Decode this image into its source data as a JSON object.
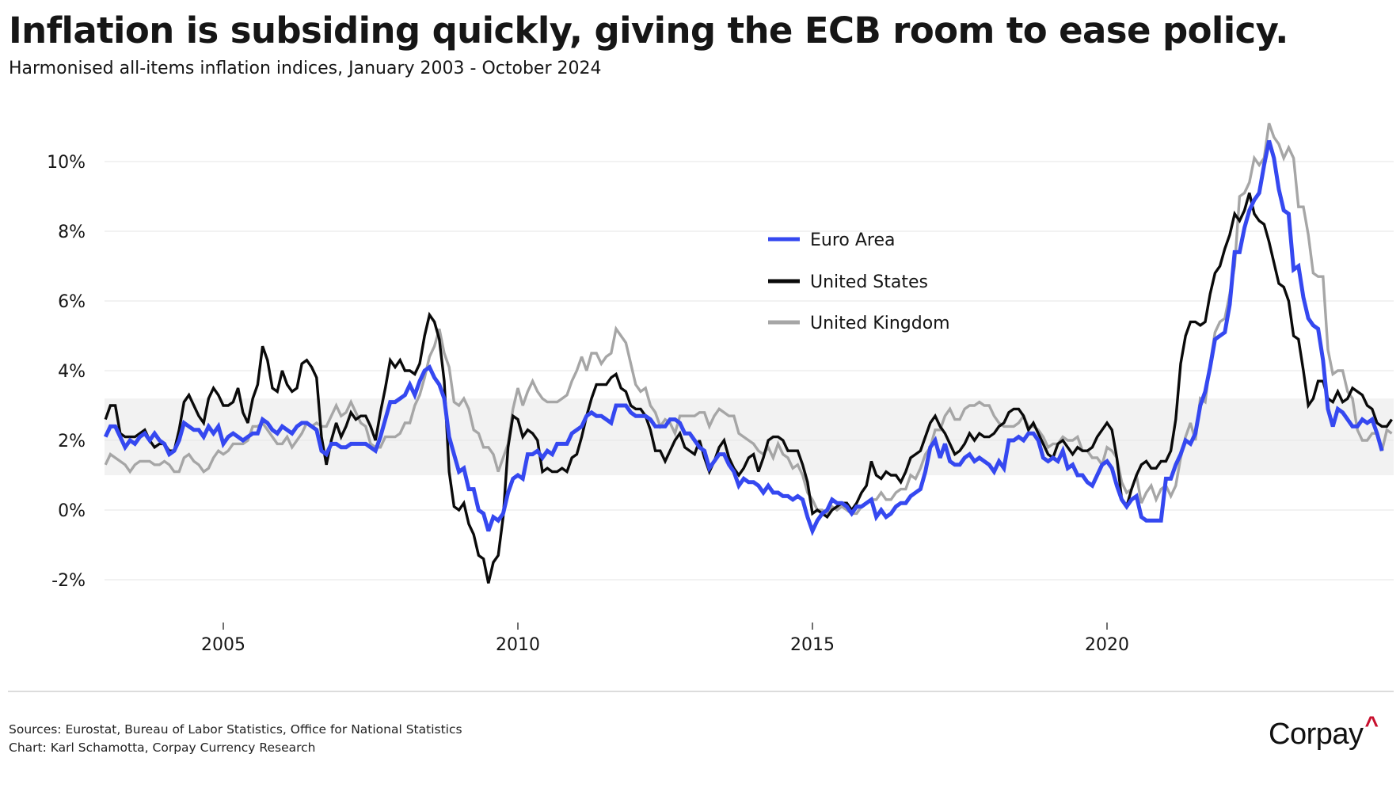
{
  "header": {
    "title": "Inflation is subsiding quickly, giving the ECB room to ease policy.",
    "subtitle_main": "Harmonised all-items inflation indices,",
    "subtitle_range": " January 2003 - October 2024"
  },
  "footer": {
    "sources": "Sources: Eurostat, Bureau of Labor Statistics, Office for National Statistics",
    "credit": "Chart: Karl Schamotta, Corpay Currency Research",
    "logo_text": "Corpay",
    "logo_mark": "^",
    "logo_mark_color": "#c8102e"
  },
  "chart_data": {
    "type": "line",
    "title": "Inflation is subsiding quickly, giving the ECB room to ease policy.",
    "subtitle": "Harmonised all-items inflation indices, January 2003 - October 2024",
    "xlabel": "",
    "ylabel": "",
    "x_start": "2003-01",
    "x_end": "2024-10",
    "x_frequency": "monthly",
    "xlim": [
      2003.0,
      2024.79
    ],
    "ylim": [
      -3.2,
      11.2
    ],
    "x_ticks": [
      2005,
      2010,
      2015,
      2020
    ],
    "x_tick_labels": [
      "2005",
      "2010",
      "2015",
      "2020"
    ],
    "y_ticks": [
      -2,
      0,
      2,
      4,
      6,
      8,
      10
    ],
    "y_tick_labels": [
      "-2%",
      "0%",
      "2%",
      "4%",
      "6%",
      "8%",
      "10%"
    ],
    "grid": "horizontal",
    "shaded_band": {
      "from": 1.0,
      "to": 3.2,
      "color": "#f2f2f2"
    },
    "legend_position": "top-center",
    "series": [
      {
        "name": "Euro Area",
        "color": "#3548f0",
        "values": [
          2.1,
          2.4,
          2.4,
          2.1,
          1.8,
          2.0,
          1.9,
          2.1,
          2.2,
          2.0,
          2.2,
          2.0,
          1.9,
          1.6,
          1.7,
          2.0,
          2.5,
          2.4,
          2.3,
          2.3,
          2.1,
          2.4,
          2.2,
          2.4,
          1.9,
          2.1,
          2.2,
          2.1,
          2.0,
          2.1,
          2.2,
          2.2,
          2.6,
          2.5,
          2.3,
          2.2,
          2.4,
          2.3,
          2.2,
          2.4,
          2.5,
          2.5,
          2.4,
          2.3,
          1.7,
          1.6,
          1.9,
          1.9,
          1.8,
          1.8,
          1.9,
          1.9,
          1.9,
          1.9,
          1.8,
          1.7,
          2.1,
          2.6,
          3.1,
          3.1,
          3.2,
          3.3,
          3.6,
          3.3,
          3.7,
          4.0,
          4.1,
          3.8,
          3.6,
          3.2,
          2.1,
          1.6,
          1.1,
          1.2,
          0.6,
          0.6,
          0.0,
          -0.1,
          -0.6,
          -0.2,
          -0.3,
          -0.1,
          0.5,
          0.9,
          1.0,
          0.9,
          1.6,
          1.6,
          1.7,
          1.5,
          1.7,
          1.6,
          1.9,
          1.9,
          1.9,
          2.2,
          2.3,
          2.4,
          2.7,
          2.8,
          2.7,
          2.7,
          2.6,
          2.5,
          3.0,
          3.0,
          3.0,
          2.8,
          2.7,
          2.7,
          2.7,
          2.6,
          2.4,
          2.4,
          2.4,
          2.6,
          2.6,
          2.5,
          2.2,
          2.2,
          2.0,
          1.8,
          1.7,
          1.2,
          1.4,
          1.6,
          1.6,
          1.3,
          1.1,
          0.7,
          0.9,
          0.8,
          0.8,
          0.7,
          0.5,
          0.7,
          0.5,
          0.5,
          0.4,
          0.4,
          0.3,
          0.4,
          0.3,
          -0.2,
          -0.6,
          -0.3,
          -0.1,
          0.0,
          0.3,
          0.2,
          0.2,
          0.1,
          -0.1,
          0.1,
          0.1,
          0.2,
          0.3,
          -0.2,
          0.0,
          -0.2,
          -0.1,
          0.1,
          0.2,
          0.2,
          0.4,
          0.5,
          0.6,
          1.1,
          1.8,
          2.0,
          1.5,
          1.9,
          1.4,
          1.3,
          1.3,
          1.5,
          1.6,
          1.4,
          1.5,
          1.4,
          1.3,
          1.1,
          1.4,
          1.2,
          2.0,
          2.0,
          2.1,
          2.0,
          2.2,
          2.2,
          2.0,
          1.5,
          1.4,
          1.5,
          1.4,
          1.7,
          1.2,
          1.3,
          1.0,
          1.0,
          0.8,
          0.7,
          1.0,
          1.3,
          1.4,
          1.2,
          0.7,
          0.3,
          0.1,
          0.3,
          0.4,
          -0.2,
          -0.3,
          -0.3,
          -0.3,
          -0.3,
          0.9,
          0.9,
          1.3,
          1.6,
          2.0,
          1.9,
          2.2,
          3.0,
          3.4,
          4.1,
          4.9,
          5.0,
          5.1,
          5.9,
          7.4,
          7.4,
          8.1,
          8.6,
          8.9,
          9.1,
          9.9,
          10.6,
          10.1,
          9.2,
          8.6,
          8.5,
          6.9,
          7.0,
          6.1,
          5.5,
          5.3,
          5.2,
          4.3,
          2.9,
          2.4,
          2.9,
          2.8,
          2.6,
          2.4,
          2.4,
          2.6,
          2.5,
          2.6,
          2.2,
          1.7
        ]
      },
      {
        "name": "United States",
        "color": "#0a0a0a",
        "values": [
          2.6,
          3.0,
          3.0,
          2.2,
          2.1,
          2.1,
          2.1,
          2.2,
          2.3,
          2.0,
          1.8,
          1.9,
          1.9,
          1.7,
          1.7,
          2.3,
          3.1,
          3.3,
          3.0,
          2.7,
          2.5,
          3.2,
          3.5,
          3.3,
          3.0,
          3.0,
          3.1,
          3.5,
          2.8,
          2.5,
          3.2,
          3.6,
          4.7,
          4.3,
          3.5,
          3.4,
          4.0,
          3.6,
          3.4,
          3.5,
          4.2,
          4.3,
          4.1,
          3.8,
          2.1,
          1.3,
          2.0,
          2.5,
          2.1,
          2.4,
          2.8,
          2.6,
          2.7,
          2.7,
          2.4,
          2.0,
          2.8,
          3.5,
          4.3,
          4.1,
          4.3,
          4.0,
          4.0,
          3.9,
          4.2,
          5.0,
          5.6,
          5.4,
          4.9,
          3.7,
          1.1,
          0.1,
          0.0,
          0.2,
          -0.4,
          -0.7,
          -1.3,
          -1.4,
          -2.1,
          -1.5,
          -1.3,
          -0.2,
          1.8,
          2.7,
          2.6,
          2.1,
          2.3,
          2.2,
          2.0,
          1.1,
          1.2,
          1.1,
          1.1,
          1.2,
          1.1,
          1.5,
          1.6,
          2.1,
          2.7,
          3.2,
          3.6,
          3.6,
          3.6,
          3.8,
          3.9,
          3.5,
          3.4,
          3.0,
          2.9,
          2.9,
          2.7,
          2.3,
          1.7,
          1.7,
          1.4,
          1.7,
          2.0,
          2.2,
          1.8,
          1.7,
          1.6,
          2.0,
          1.5,
          1.1,
          1.4,
          1.8,
          2.0,
          1.5,
          1.2,
          1.0,
          1.2,
          1.5,
          1.6,
          1.1,
          1.5,
          2.0,
          2.1,
          2.1,
          2.0,
          1.7,
          1.7,
          1.7,
          1.3,
          0.8,
          -0.1,
          0.0,
          -0.1,
          -0.2,
          0.0,
          0.1,
          0.2,
          0.2,
          0.0,
          0.2,
          0.5,
          0.7,
          1.4,
          1.0,
          0.9,
          1.1,
          1.0,
          1.0,
          0.8,
          1.1,
          1.5,
          1.6,
          1.7,
          2.1,
          2.5,
          2.7,
          2.4,
          2.2,
          1.9,
          1.6,
          1.7,
          1.9,
          2.2,
          2.0,
          2.2,
          2.1,
          2.1,
          2.2,
          2.4,
          2.5,
          2.8,
          2.9,
          2.9,
          2.7,
          2.3,
          2.5,
          2.2,
          1.9,
          1.6,
          1.5,
          1.9,
          2.0,
          1.8,
          1.6,
          1.8,
          1.7,
          1.7,
          1.8,
          2.1,
          2.3,
          2.5,
          2.3,
          1.5,
          0.3,
          0.1,
          0.6,
          1.0,
          1.3,
          1.4,
          1.2,
          1.2,
          1.4,
          1.4,
          1.7,
          2.6,
          4.2,
          5.0,
          5.4,
          5.4,
          5.3,
          5.4,
          6.2,
          6.8,
          7.0,
          7.5,
          7.9,
          8.5,
          8.3,
          8.6,
          9.1,
          8.5,
          8.3,
          8.2,
          7.7,
          7.1,
          6.5,
          6.4,
          6.0,
          5.0,
          4.9,
          4.0,
          3.0,
          3.2,
          3.7,
          3.7,
          3.2,
          3.1,
          3.4,
          3.1,
          3.2,
          3.5,
          3.4,
          3.3,
          3.0,
          2.9,
          2.5,
          2.4,
          2.4,
          2.6
        ]
      },
      {
        "name": "United Kingdom",
        "color": "#a6a6a6",
        "values": [
          1.3,
          1.6,
          1.5,
          1.4,
          1.3,
          1.1,
          1.3,
          1.4,
          1.4,
          1.4,
          1.3,
          1.3,
          1.4,
          1.3,
          1.1,
          1.1,
          1.5,
          1.6,
          1.4,
          1.3,
          1.1,
          1.2,
          1.5,
          1.7,
          1.6,
          1.7,
          1.9,
          1.9,
          1.9,
          2.0,
          2.4,
          2.4,
          2.5,
          2.3,
          2.1,
          1.9,
          1.9,
          2.1,
          1.8,
          2.0,
          2.2,
          2.5,
          2.4,
          2.5,
          2.4,
          2.4,
          2.7,
          3.0,
          2.7,
          2.8,
          3.1,
          2.8,
          2.5,
          2.4,
          1.9,
          1.8,
          1.8,
          2.1,
          2.1,
          2.1,
          2.2,
          2.5,
          2.5,
          3.0,
          3.3,
          3.8,
          4.4,
          4.7,
          5.2,
          4.5,
          4.1,
          3.1,
          3.0,
          3.2,
          2.9,
          2.3,
          2.2,
          1.8,
          1.8,
          1.6,
          1.1,
          1.5,
          1.9,
          2.9,
          3.5,
          3.0,
          3.4,
          3.7,
          3.4,
          3.2,
          3.1,
          3.1,
          3.1,
          3.2,
          3.3,
          3.7,
          4.0,
          4.4,
          4.0,
          4.5,
          4.5,
          4.2,
          4.4,
          4.5,
          5.2,
          5.0,
          4.8,
          4.2,
          3.6,
          3.4,
          3.5,
          3.0,
          2.8,
          2.4,
          2.6,
          2.5,
          2.2,
          2.7,
          2.7,
          2.7,
          2.7,
          2.8,
          2.8,
          2.4,
          2.7,
          2.9,
          2.8,
          2.7,
          2.7,
          2.2,
          2.1,
          2.0,
          1.9,
          1.7,
          1.6,
          1.8,
          1.5,
          1.9,
          1.6,
          1.5,
          1.2,
          1.3,
          1.0,
          0.5,
          0.3,
          0.0,
          0.0,
          -0.1,
          0.1,
          0.0,
          0.1,
          0.0,
          -0.1,
          -0.1,
          0.1,
          0.2,
          0.3,
          0.3,
          0.5,
          0.3,
          0.3,
          0.5,
          0.6,
          0.6,
          1.0,
          0.9,
          1.2,
          1.6,
          1.8,
          2.3,
          2.3,
          2.7,
          2.9,
          2.6,
          2.6,
          2.9,
          3.0,
          3.0,
          3.1,
          3.0,
          3.0,
          2.7,
          2.5,
          2.4,
          2.4,
          2.4,
          2.5,
          2.7,
          2.4,
          2.4,
          2.3,
          2.1,
          1.8,
          1.9,
          1.9,
          2.1,
          2.0,
          2.0,
          2.1,
          1.7,
          1.7,
          1.5,
          1.5,
          1.3,
          1.8,
          1.7,
          1.5,
          0.8,
          0.5,
          0.6,
          1.0,
          0.2,
          0.5,
          0.7,
          0.3,
          0.6,
          0.7,
          0.4,
          0.7,
          1.5,
          2.1,
          2.5,
          2.0,
          3.2,
          3.1,
          4.2,
          5.1,
          5.4,
          5.5,
          6.2,
          7.0,
          9.0,
          9.1,
          9.4,
          10.1,
          9.9,
          10.1,
          11.1,
          10.7,
          10.5,
          10.1,
          10.4,
          10.1,
          8.7,
          8.7,
          7.9,
          6.8,
          6.7,
          6.7,
          4.6,
          3.9,
          4.0,
          4.0,
          3.4,
          3.2,
          2.3,
          2.0,
          2.0,
          2.2,
          2.2,
          1.7,
          2.3,
          2.2
        ]
      }
    ]
  }
}
